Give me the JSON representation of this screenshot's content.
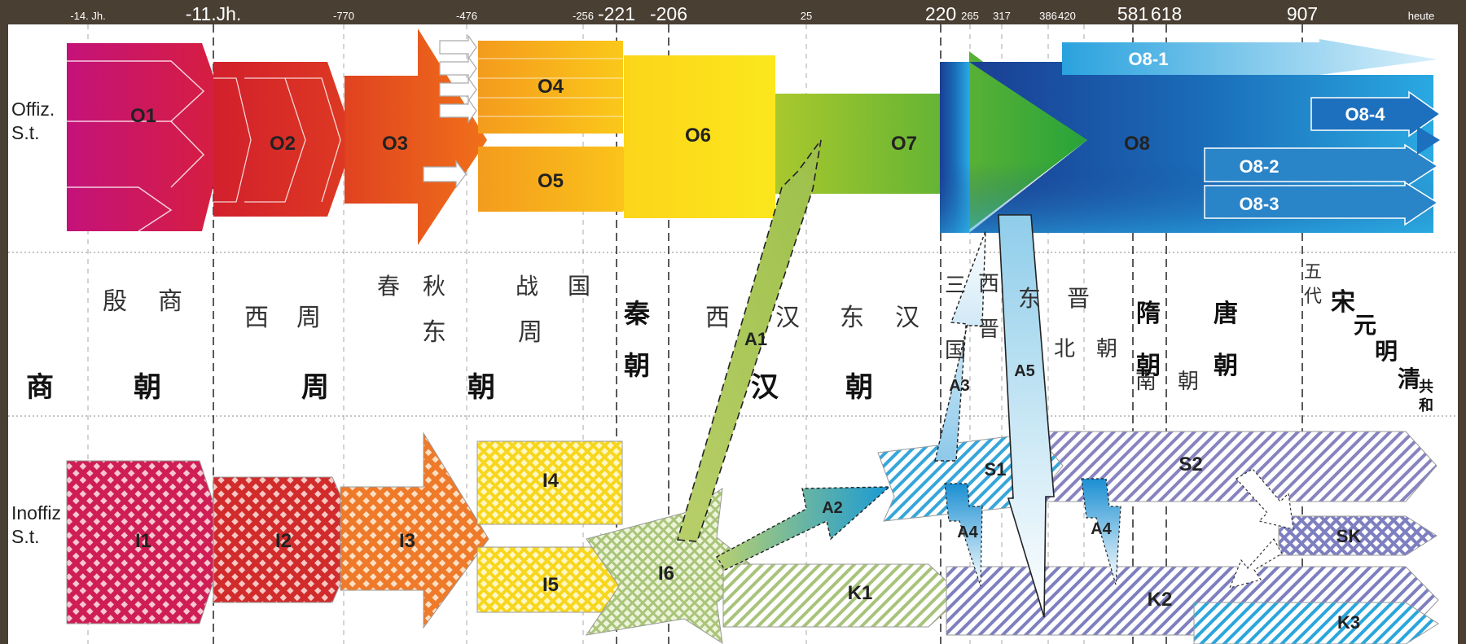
{
  "timeline": {
    "ticks": [
      {
        "label": "-14. Jh.",
        "size": "small"
      },
      {
        "label": "-11.Jh.",
        "size": "big"
      },
      {
        "label": "-770",
        "size": "small"
      },
      {
        "label": "-476",
        "size": "small"
      },
      {
        "label": "-256",
        "size": "small"
      },
      {
        "label": "-221",
        "size": "big"
      },
      {
        "label": "-206",
        "size": "big"
      },
      {
        "label": "25",
        "size": "small"
      },
      {
        "label": "220",
        "size": "big"
      },
      {
        "label": "265",
        "size": "small"
      },
      {
        "label": "317",
        "size": "small"
      },
      {
        "label": "386",
        "size": "small"
      },
      {
        "label": "420",
        "size": "small"
      },
      {
        "label": "581",
        "size": "big"
      },
      {
        "label": "618",
        "size": "big"
      },
      {
        "label": "907",
        "size": "big"
      },
      {
        "label": "heute",
        "size": "small"
      }
    ]
  },
  "rows": {
    "official": "Offiz.\nS.t.",
    "inofficial": "Inoffiz\nS.t."
  },
  "dynasties": [
    {
      "text": "殷",
      "bold": false
    },
    {
      "text": "商",
      "bold": false
    },
    {
      "text": "西",
      "bold": false
    },
    {
      "text": "周",
      "bold": false
    },
    {
      "text": "春",
      "bold": false
    },
    {
      "text": "秋",
      "bold": false
    },
    {
      "text": "东",
      "bold": false
    },
    {
      "text": "战",
      "bold": false
    },
    {
      "text": "国",
      "bold": false
    },
    {
      "text": "周",
      "bold": false
    },
    {
      "text": "秦",
      "bold": true
    },
    {
      "text": "朝",
      "bold": true
    },
    {
      "text": "西",
      "bold": false
    },
    {
      "text": "汉",
      "bold": false
    },
    {
      "text": "东",
      "bold": false
    },
    {
      "text": "汉",
      "bold": false
    },
    {
      "text": "三",
      "bold": false
    },
    {
      "text": "国",
      "bold": false
    },
    {
      "text": "西",
      "bold": false
    },
    {
      "text": "晋",
      "bold": false
    },
    {
      "text": "东",
      "bold": false
    },
    {
      "text": "晋",
      "bold": false
    },
    {
      "text": "北",
      "bold": false
    },
    {
      "text": "朝",
      "bold": false
    },
    {
      "text": "南",
      "bold": false
    },
    {
      "text": "朝",
      "bold": false
    },
    {
      "text": "隋",
      "bold": true
    },
    {
      "text": "朝",
      "bold": true
    },
    {
      "text": "唐",
      "bold": true
    },
    {
      "text": "朝",
      "bold": true
    },
    {
      "text": "五",
      "bold": false
    },
    {
      "text": "代",
      "bold": false
    },
    {
      "text": "宋",
      "bold": true
    },
    {
      "text": "元",
      "bold": true
    },
    {
      "text": "明",
      "bold": true
    },
    {
      "text": "清",
      "bold": true
    },
    {
      "text": "共",
      "bold": true
    },
    {
      "text": "和",
      "bold": true
    },
    {
      "text": "商",
      "bold": true
    },
    {
      "text": "朝",
      "bold": true
    },
    {
      "text": "周",
      "bold": true
    },
    {
      "text": "朝",
      "bold": true
    },
    {
      "text": "汉",
      "bold": true
    },
    {
      "text": "朝",
      "bold": true
    }
  ],
  "arrows": {
    "O1": "O1",
    "O2": "O2",
    "O3": "O3",
    "O4": "O4",
    "O5": "O5",
    "O6": "O6",
    "O7": "O7",
    "O8": "O8",
    "O8_1": "O8-1",
    "O8_2": "O8-2",
    "O8_3": "O8-3",
    "O8_4": "O8-4",
    "I1": "I1",
    "I2": "I2",
    "I3": "I3",
    "I4": "I4",
    "I5": "I5",
    "I6": "I6",
    "A1": "A1",
    "A2": "A2",
    "A3": "A3",
    "A4a": "A4",
    "A4b": "A4",
    "A5": "A5",
    "S1": "S1",
    "S2": "S2",
    "SK": "SK",
    "K1": "K1",
    "K2": "K2",
    "K3": "K3"
  },
  "colors": {
    "background": "#4a3f33",
    "o1": "#cc1d6e",
    "o2": "#d6232e",
    "o3": "#e8521a",
    "o4": "#f7a21b",
    "o6": "#fde31b",
    "o7": "#3aaa35",
    "o8": "#1b4fa0",
    "o8light": "#29a3e0",
    "k": "#b8cf8a",
    "s": "#7a7fbd",
    "sk": "#7a7fbd"
  }
}
